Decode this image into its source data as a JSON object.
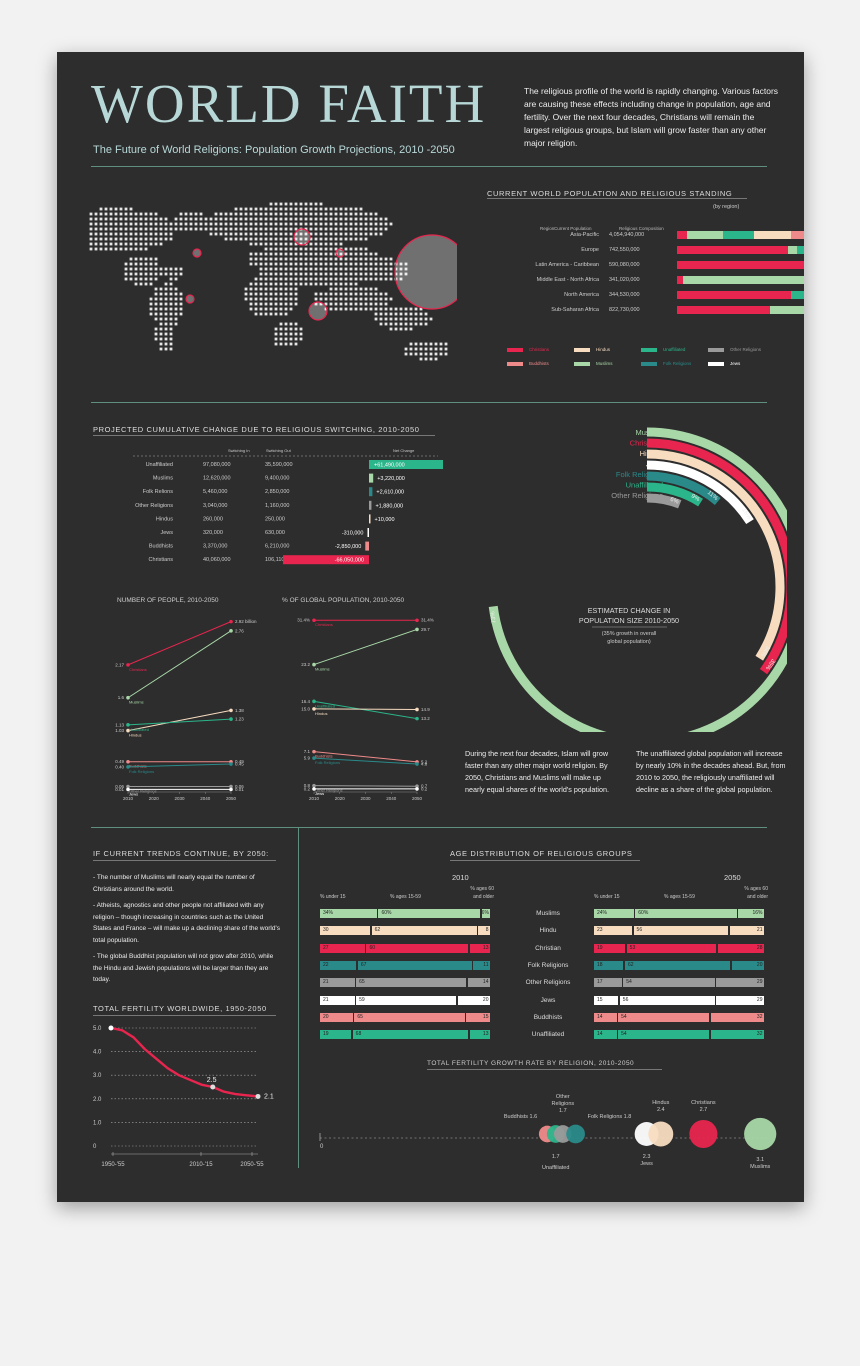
{
  "header": {
    "title": "WORLD FAITH",
    "subtitle": "The Future of World Religions: Population Growth Projections, 2010 -2050",
    "intro": "The religious profile of the world is rapidly changing. Various factors are causing these effects including change in population, age and fertility. Over the next four decades, Christians will remain the largest religious groups, but Islam will grow faster than any other major religion."
  },
  "colors": {
    "Christians": "#e8254e",
    "Buddhists": "#ef8a8a",
    "Hindus": "#f8dcc0",
    "Muslims": "#a8d8a8",
    "Unaffiliated": "#2bb58a",
    "Folk Religions": "#2a8a8a",
    "Other Religions": "#9a9a9a",
    "Jews": "#ffffff"
  },
  "current_population": {
    "title": "CURRENT WORLD POPULATION AND  RELIGIOUS STANDING",
    "subtitle": "(by region)",
    "headers": [
      "Region",
      "Current Population",
      "Religious Composition"
    ],
    "rows": [
      {
        "region": "Asia-Pacific",
        "population": "4,054,940,000",
        "composition": [
          [
            "Christians",
            7
          ],
          [
            "Muslims",
            24
          ],
          [
            "Unaffiliated",
            21
          ],
          [
            "Hindus",
            25
          ],
          [
            "Buddhists",
            12
          ],
          [
            "Folk Religions",
            9
          ],
          [
            "Other Religions",
            2
          ]
        ]
      },
      {
        "region": "Europe",
        "population": "742,550,000",
        "composition": [
          [
            "Christians",
            75
          ],
          [
            "Muslims",
            6
          ],
          [
            "Unaffiliated",
            18
          ],
          [
            "Jews",
            1
          ]
        ]
      },
      {
        "region": "Latin America - Caribbean",
        "population": "590,080,000",
        "composition": [
          [
            "Christians",
            90
          ],
          [
            "Unaffiliated",
            8
          ],
          [
            "Folk Religions",
            2
          ]
        ]
      },
      {
        "region": "Middle East - North Africa",
        "population": "341,020,000",
        "composition": [
          [
            "Christians",
            4
          ],
          [
            "Muslims",
            93
          ],
          [
            "Jews",
            2
          ],
          [
            "Other Religions",
            1
          ]
        ]
      },
      {
        "region": "North America",
        "population": "344,530,000",
        "composition": [
          [
            "Christians",
            77
          ],
          [
            "Unaffiliated",
            17
          ],
          [
            "Muslims",
            1
          ],
          [
            "Jews",
            2
          ],
          [
            "Other Religions",
            3
          ]
        ]
      },
      {
        "region": "Sub-Saharan Africa",
        "population": "822,730,000",
        "composition": [
          [
            "Christians",
            63
          ],
          [
            "Muslims",
            30
          ],
          [
            "Unaffiliated",
            3
          ],
          [
            "Folk Religions",
            4
          ]
        ]
      }
    ],
    "legend": [
      {
        "name": "Christians",
        "color": "#e8254e"
      },
      {
        "name": "Hindus",
        "color": "#f8dcc0"
      },
      {
        "name": "Unaffiliated",
        "color": "#2bb58a"
      },
      {
        "name": "Other Religions",
        "color": "#9a9a9a"
      },
      {
        "name": "Buddhists",
        "color": "#ef8a8a"
      },
      {
        "name": "Muslims",
        "color": "#a8d8a8"
      },
      {
        "name": "Folk Religions",
        "color": "#2a8a8a"
      },
      {
        "name": "Jews",
        "color": "#ffffff"
      }
    ]
  },
  "switching": {
    "title": "PROJECTED CUMULATIVE CHANGE DUE TO RELIGIOUS SWITCHING, 2010-2050",
    "headers": [
      "Switching In",
      "Switching Out",
      "Net Change"
    ],
    "rows": [
      {
        "name": "Unaffiliated",
        "in": "97,080,000",
        "out": "35,590,000",
        "net": 61490000,
        "net_label": "+61,490,000"
      },
      {
        "name": "Muslims",
        "in": "12,620,000",
        "out": "9,400,000",
        "net": 3220000,
        "net_label": "+3,220,000"
      },
      {
        "name": "Folk Relions",
        "in": "5,460,000",
        "out": "2,850,000",
        "net": 2610000,
        "net_label": "+2,610,000"
      },
      {
        "name": "Other Religions",
        "in": "3,040,000",
        "out": "1,160,000",
        "net": 1880000,
        "net_label": "+1,880,000"
      },
      {
        "name": "Hindus",
        "in": "260,000",
        "out": "250,000",
        "net": 10000,
        "net_label": "+10,000"
      },
      {
        "name": "Jews",
        "in": "320,000",
        "out": "630,000",
        "net": -310000,
        "net_label": "-310,000"
      },
      {
        "name": "Buddhists",
        "in": "3,370,000",
        "out": "6,210,000",
        "net": -2850000,
        "net_label": "-2,850,000"
      },
      {
        "name": "Christians",
        "in": "40,060,000",
        "out": "106,110,000",
        "net": -66050000,
        "net_label": "-66,050,000"
      }
    ]
  },
  "growth_ring": {
    "title_line1": "ESTIMATED CHANGE IN",
    "title_line2": "POPULATION SIZE 2010-2050",
    "note_line1": "(35% growth in overall",
    "note_line2": "global population)",
    "series": [
      {
        "name": "Muslims",
        "value": 73,
        "label": "73%"
      },
      {
        "name": "Christians",
        "value": 35,
        "label": "35%"
      },
      {
        "name": "Hindus",
        "value": 34,
        "label": "34%"
      },
      {
        "name": "Jews",
        "value": 16,
        "label": "16%"
      },
      {
        "name": "Folk Religions",
        "value": 11,
        "label": "11%"
      },
      {
        "name": "Unaffiliated",
        "value": 9,
        "label": "9%"
      },
      {
        "name": "Other Religions",
        "value": 6,
        "label": "6%"
      }
    ]
  },
  "people_chart": {
    "title": "NUMBER OF PEOPLE, 2010-2050",
    "x_ticks": [
      "2010",
      "2020",
      "2030",
      "2040",
      "2050"
    ],
    "series": [
      {
        "name": "Christians",
        "start": "2.17",
        "end": "2.92 billion",
        "v0": 2.17,
        "v1": 2.92
      },
      {
        "name": "Muslims",
        "start": "1.6",
        "end": "2.76",
        "v0": 1.6,
        "v1": 2.76
      },
      {
        "name": "Hindus",
        "start": "1.03",
        "end": "1.38",
        "v0": 1.03,
        "v1": 1.38
      },
      {
        "name": "Unaffiliated",
        "start": "1.13",
        "end": "1.23",
        "v0": 1.13,
        "v1": 1.23
      },
      {
        "name": "Buddhists",
        "start": "0.49",
        "end": "0.49",
        "v0": 0.49,
        "v1": 0.49
      },
      {
        "name": "Folk Religions",
        "start": "0.40",
        "end": "0.45",
        "v0": 0.4,
        "v1": 0.45
      },
      {
        "name": "Other Religions",
        "start": "0.06",
        "end": "0.06",
        "v0": 0.06,
        "v1": 0.06
      },
      {
        "name": "Jews",
        "start": "0.01",
        "end": "0.01",
        "v0": 0.01,
        "v1": 0.01
      }
    ]
  },
  "share_chart": {
    "title": "% OF GLOBAL POPULATION, 2010-2050",
    "x_ticks": [
      "2010",
      "2020",
      "2030",
      "2040",
      "2050"
    ],
    "series": [
      {
        "name": "Christians",
        "start": "31.4%",
        "end": "31.4%",
        "v0": 31.4,
        "v1": 31.4
      },
      {
        "name": "Muslims",
        "start": "23.2",
        "end": "29.7",
        "v0": 23.2,
        "v1": 29.7
      },
      {
        "name": "Unaffiliated",
        "start": "16.4",
        "end": "13.2",
        "v0": 16.4,
        "v1": 13.2
      },
      {
        "name": "Hindus",
        "start": "15.0",
        "end": "14.9",
        "v0": 15.0,
        "v1": 14.9
      },
      {
        "name": "Buddhists",
        "start": "7.1",
        "end": "5.2",
        "v0": 7.1,
        "v1": 5.2
      },
      {
        "name": "Folk Religions",
        "start": "5.9",
        "end": "4.8",
        "v0": 5.9,
        "v1": 4.8
      },
      {
        "name": "Other Religions",
        "start": "0.8",
        "end": "0.7",
        "v0": 0.8,
        "v1": 0.7
      },
      {
        "name": "Jews",
        "start": "0.2",
        "end": "0.2",
        "v0": 0.2,
        "v1": 0.2
      }
    ]
  },
  "notes": {
    "islam": "During the next four decades, Islam will grow faster than any other major world religion. By 2050, Christians and Muslims will make up nearly equal shares of the world's population.",
    "unaffiliated": "The unaffiliated global population will increase by nearly 10% in the decades ahead. But, from 2010 to 2050, the religiously unaffiliated will decline as a share of the global population."
  },
  "trends": {
    "title": "IF CURRENT TRENDS CONTINUE, BY 2050:",
    "items": [
      "- The number of Muslims will nearly equal the number of Christians around the world.",
      "- Atheists, agnostics and other people not affiliated with any religion – though increasing in countries such as the United States and France – will make up a declining share of the world's total population.",
      "- The global Buddhist population will not grow after 2010, while the Hindu and Jewish populations will be larger than they are today."
    ]
  },
  "fertility": {
    "title": "TOTAL FERTILITY WORLDWIDE, 1950-2050",
    "y_ticks": [
      "5.0",
      "4.0",
      "3.0",
      "2.0",
      "1.0",
      "0"
    ],
    "x_ticks": [
      "1950-'55",
      "2010-'15",
      "2050-'55"
    ],
    "points": [
      5.0,
      4.9,
      4.6,
      4.1,
      3.7,
      3.3,
      3.0,
      2.8,
      2.6,
      2.5,
      2.3,
      2.2,
      2.15,
      2.1
    ],
    "label_mid": "2.5",
    "label_end": "2.1"
  },
  "age": {
    "title": "AGE DISTRIBUTION OF RELIGIOUS GROUPS",
    "year_a": "2010",
    "year_b": "2050",
    "col_a": "% under 15",
    "col_b": "% ages 15-59",
    "col_c1": "% ages 60",
    "col_c2": "and older",
    "rows": [
      {
        "name": "Muslims",
        "a": [
          "34%",
          "60%",
          "6%"
        ],
        "b": [
          "24%",
          "60%",
          "16%"
        ]
      },
      {
        "name": "Hindu",
        "a": [
          "30",
          "62",
          "8"
        ],
        "b": [
          "23",
          "56",
          "21"
        ]
      },
      {
        "name": "Christian",
        "a": [
          "27",
          "60",
          "13"
        ],
        "b": [
          "19",
          "53",
          "28"
        ]
      },
      {
        "name": "Folk Religions",
        "a": [
          "22",
          "67",
          "11"
        ],
        "b": [
          "18",
          "62",
          "20"
        ]
      },
      {
        "name": "Other Religions",
        "a": [
          "21",
          "65",
          "14"
        ],
        "b": [
          "17",
          "54",
          "29"
        ]
      },
      {
        "name": "Jews",
        "a": [
          "21",
          "59",
          "20"
        ],
        "b": [
          "15",
          "56",
          "29"
        ]
      },
      {
        "name": "Buddhists",
        "a": [
          "20",
          "65",
          "15"
        ],
        "b": [
          "14",
          "54",
          "32"
        ]
      },
      {
        "name": "Unaffiliated",
        "a": [
          "19",
          "68",
          "13"
        ],
        "b": [
          "14",
          "54",
          "32"
        ]
      }
    ]
  },
  "fertility_by_religion": {
    "title": "TOTAL FERTILITY GROWTH RATE BY RELIGION, 2010-2050",
    "zero": "0",
    "items": [
      {
        "name": "Buddhists",
        "value": 1.6,
        "label": "Buddhists  1.6"
      },
      {
        "name": "Unaffiliated",
        "value": 1.7,
        "label_value": "1.7",
        "label": "Unaffiliated"
      },
      {
        "name": "Other Religions",
        "value": 1.7,
        "label_a": "Other",
        "label_b": "Religions",
        "label_value": "1.7"
      },
      {
        "name": "Folk Religions",
        "value": 1.8,
        "label": "Folk Religions  1.8"
      },
      {
        "name": "Jews",
        "value": 2.3,
        "label_value": "2.3",
        "label": "Jews"
      },
      {
        "name": "Hindus",
        "value": 2.4,
        "label": "Hindus",
        "label_value": "2.4"
      },
      {
        "name": "Christians",
        "value": 2.7,
        "label": "Christians",
        "label_value": "2.7"
      },
      {
        "name": "Muslims",
        "value": 3.1,
        "label_value": "3.1",
        "label": "Muslims"
      }
    ]
  },
  "chart_data": [
    {
      "type": "bar",
      "title": "PROJECTED CUMULATIVE CHANGE DUE TO RELIGIOUS SWITCHING, 2010-2050",
      "categories": [
        "Unaffiliated",
        "Muslims",
        "Folk Relions",
        "Other Religions",
        "Hindus",
        "Jews",
        "Buddhists",
        "Christians"
      ],
      "values": [
        61490000,
        3220000,
        2610000,
        1880000,
        10000,
        -310000,
        -2850000,
        -66050000
      ]
    },
    {
      "type": "line",
      "title": "NUMBER OF PEOPLE, 2010-2050",
      "x": [
        2010,
        2050
      ],
      "series": [
        {
          "name": "Christians",
          "values": [
            2.17,
            2.92
          ]
        },
        {
          "name": "Muslims",
          "values": [
            1.6,
            2.76
          ]
        },
        {
          "name": "Hindus",
          "values": [
            1.03,
            1.38
          ]
        },
        {
          "name": "Unaffiliated",
          "values": [
            1.13,
            1.23
          ]
        },
        {
          "name": "Buddhists",
          "values": [
            0.49,
            0.49
          ]
        },
        {
          "name": "Folk Religions",
          "values": [
            0.4,
            0.45
          ]
        },
        {
          "name": "Other Religions",
          "values": [
            0.06,
            0.06
          ]
        },
        {
          "name": "Jews",
          "values": [
            0.01,
            0.01
          ]
        }
      ]
    },
    {
      "type": "line",
      "title": "% OF GLOBAL POPULATION, 2010-2050",
      "x": [
        2010,
        2050
      ],
      "series": [
        {
          "name": "Christians",
          "values": [
            31.4,
            31.4
          ]
        },
        {
          "name": "Muslims",
          "values": [
            23.2,
            29.7
          ]
        },
        {
          "name": "Unaffiliated",
          "values": [
            16.4,
            13.2
          ]
        },
        {
          "name": "Hindus",
          "values": [
            15.0,
            14.9
          ]
        },
        {
          "name": "Buddhists",
          "values": [
            7.1,
            5.2
          ]
        },
        {
          "name": "Folk Religions",
          "values": [
            5.9,
            4.8
          ]
        },
        {
          "name": "Other Religions",
          "values": [
            0.8,
            0.7
          ]
        },
        {
          "name": "Jews",
          "values": [
            0.2,
            0.2
          ]
        }
      ]
    },
    {
      "type": "bar",
      "title": "ESTIMATED CHANGE IN POPULATION SIZE 2010-2050",
      "categories": [
        "Muslims",
        "Christians",
        "Hindus",
        "Jews",
        "Folk Religions",
        "Unaffiliated",
        "Other Religions"
      ],
      "values": [
        73,
        35,
        34,
        16,
        11,
        9,
        6
      ]
    },
    {
      "type": "line",
      "title": "TOTAL FERTILITY WORLDWIDE, 1950-2050",
      "ylim": [
        0,
        5
      ]
    },
    {
      "type": "scatter",
      "title": "TOTAL FERTILITY GROWTH RATE BY RELIGION, 2010-2050",
      "categories": [
        "Buddhists",
        "Unaffiliated",
        "Other Religions",
        "Folk Religions",
        "Jews",
        "Hindus",
        "Christians",
        "Muslims"
      ],
      "values": [
        1.6,
        1.7,
        1.7,
        1.8,
        2.3,
        2.4,
        2.7,
        3.1
      ]
    }
  ]
}
